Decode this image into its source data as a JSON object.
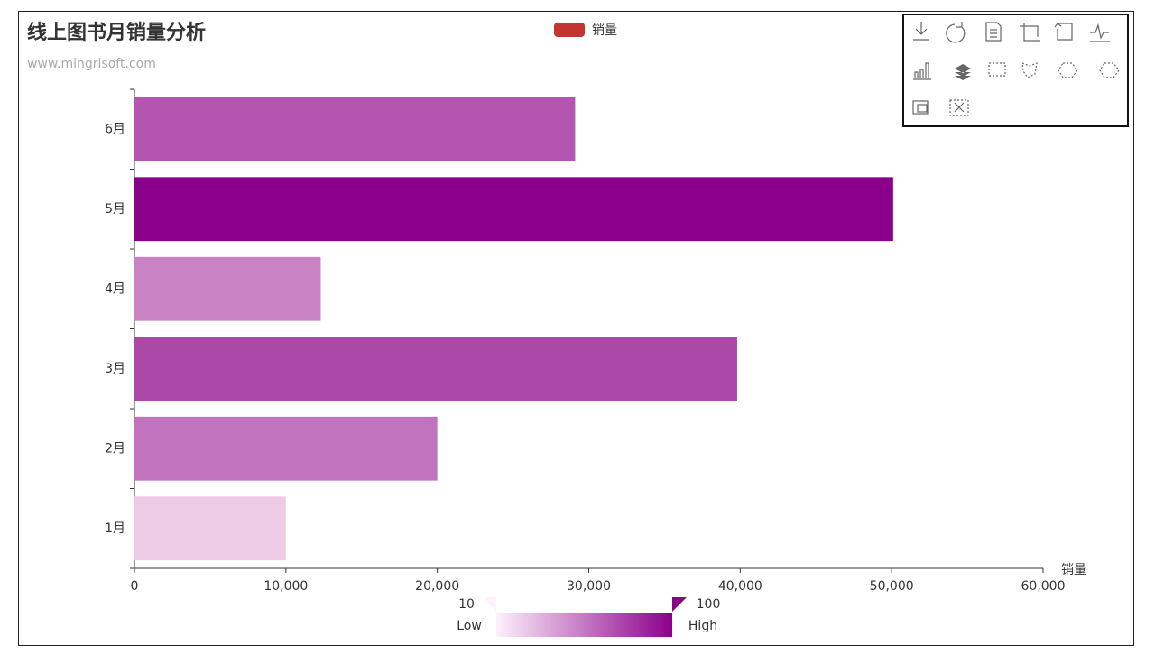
{
  "chart_data": {
    "type": "bar",
    "orientation": "horizontal",
    "title": "线上图书月销量分析",
    "subtitle": "www.mingrisoft.com",
    "categories": [
      "1月",
      "2月",
      "3月",
      "4月",
      "5月",
      "6月"
    ],
    "series": [
      {
        "name": "销量",
        "color": "#c23531",
        "values": [
          10000,
          20000,
          39800,
          12300,
          50100,
          29100
        ]
      }
    ],
    "bar_colors": [
      "#edcae5",
      "#c174bd",
      "#ac48a8",
      "#c983c5",
      "#8b008b",
      "#b455b1"
    ],
    "x_axis_label": "销量",
    "xlim": [
      0,
      60000
    ],
    "xticks": [
      0,
      {
        "value": 10000,
        "label": "10,000"
      },
      {
        "value": 20000,
        "label": "20,000"
      },
      {
        "value": 30000,
        "label": "30,000"
      },
      {
        "value": 40000,
        "label": "40,000"
      },
      {
        "value": 50000,
        "label": "50,000"
      },
      {
        "value": 60000,
        "label": "60,000"
      }
    ],
    "visual_map": {
      "min": 10,
      "max": 100,
      "text_low": "Low",
      "text_high": "High",
      "colors": [
        "#fdf1fb",
        "#8b008b"
      ]
    },
    "legend_position": "top"
  }
}
